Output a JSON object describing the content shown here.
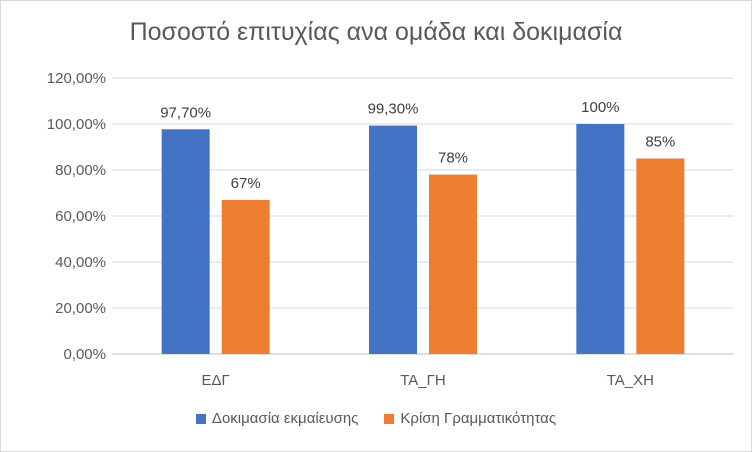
{
  "chart_data": {
    "type": "bar",
    "title": "Ποσοστό επιτυχίας ανα ομάδα και δοκιμασία",
    "categories": [
      "ΕΔΓ",
      "ΤΑ_ΓΗ",
      "ΤΑ_ΧΗ"
    ],
    "series": [
      {
        "name": "Δοκιμασία εκμαίευσης",
        "color": "#4472c4",
        "values": [
          97.7,
          99.3,
          100
        ],
        "labels": [
          "97,70%",
          "99,30%",
          "100%"
        ]
      },
      {
        "name": "Κρίση Γραμματικότητας",
        "color": "#ed7d31",
        "values": [
          67,
          78,
          85
        ],
        "labels": [
          "67%",
          "78%",
          "85%"
        ]
      }
    ],
    "ylim": [
      0,
      120
    ],
    "yticks": [
      0,
      20,
      40,
      60,
      80,
      100,
      120
    ],
    "ytick_labels": [
      "0,00%",
      "20,00%",
      "40,00%",
      "60,00%",
      "80,00%",
      "100,00%",
      "120,00%"
    ],
    "grid": true,
    "legend_position": "bottom"
  }
}
